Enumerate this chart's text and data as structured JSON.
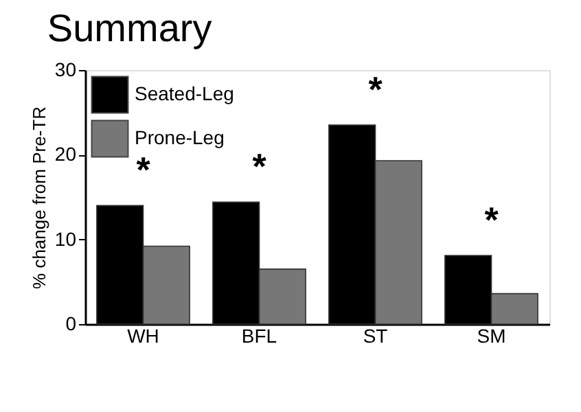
{
  "chart_data": {
    "type": "bar",
    "title": "Summary",
    "ylabel": "% change from Pre-TR",
    "categories": [
      "WH",
      "BFL",
      "ST",
      "SM"
    ],
    "series": [
      {
        "name": "Seated-Leg",
        "color": "#000000",
        "values": [
          14.0,
          14.4,
          23.5,
          8.1
        ]
      },
      {
        "name": "Prone-Leg",
        "color": "#777777",
        "values": [
          9.2,
          6.5,
          19.3,
          3.6
        ]
      }
    ],
    "ylim": [
      0,
      30
    ],
    "yticks": [
      0,
      10,
      20,
      30
    ],
    "grid": false,
    "legend": "top left",
    "annotations": [
      "*",
      "*",
      "*",
      "*"
    ]
  }
}
